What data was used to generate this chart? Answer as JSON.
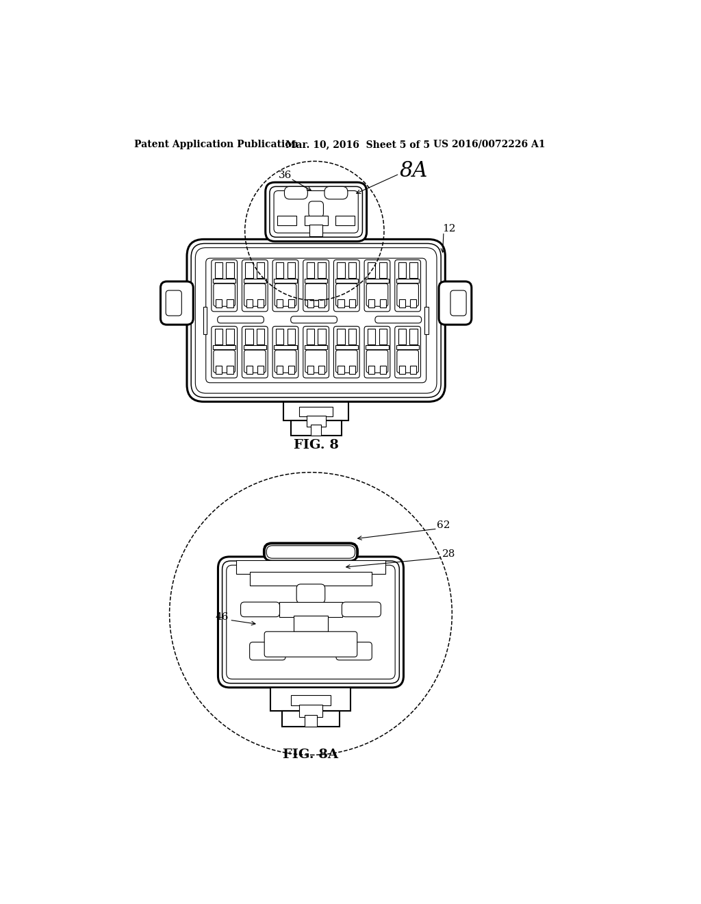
{
  "background_color": "#ffffff",
  "line_color": "#000000",
  "header_left": "Patent Application Publication",
  "header_center": "Mar. 10, 2016  Sheet 5 of 5",
  "header_right": "US 2016/0072226 A1",
  "fig8_label": "FIG. 8",
  "fig8a_label": "FIG. 8A"
}
